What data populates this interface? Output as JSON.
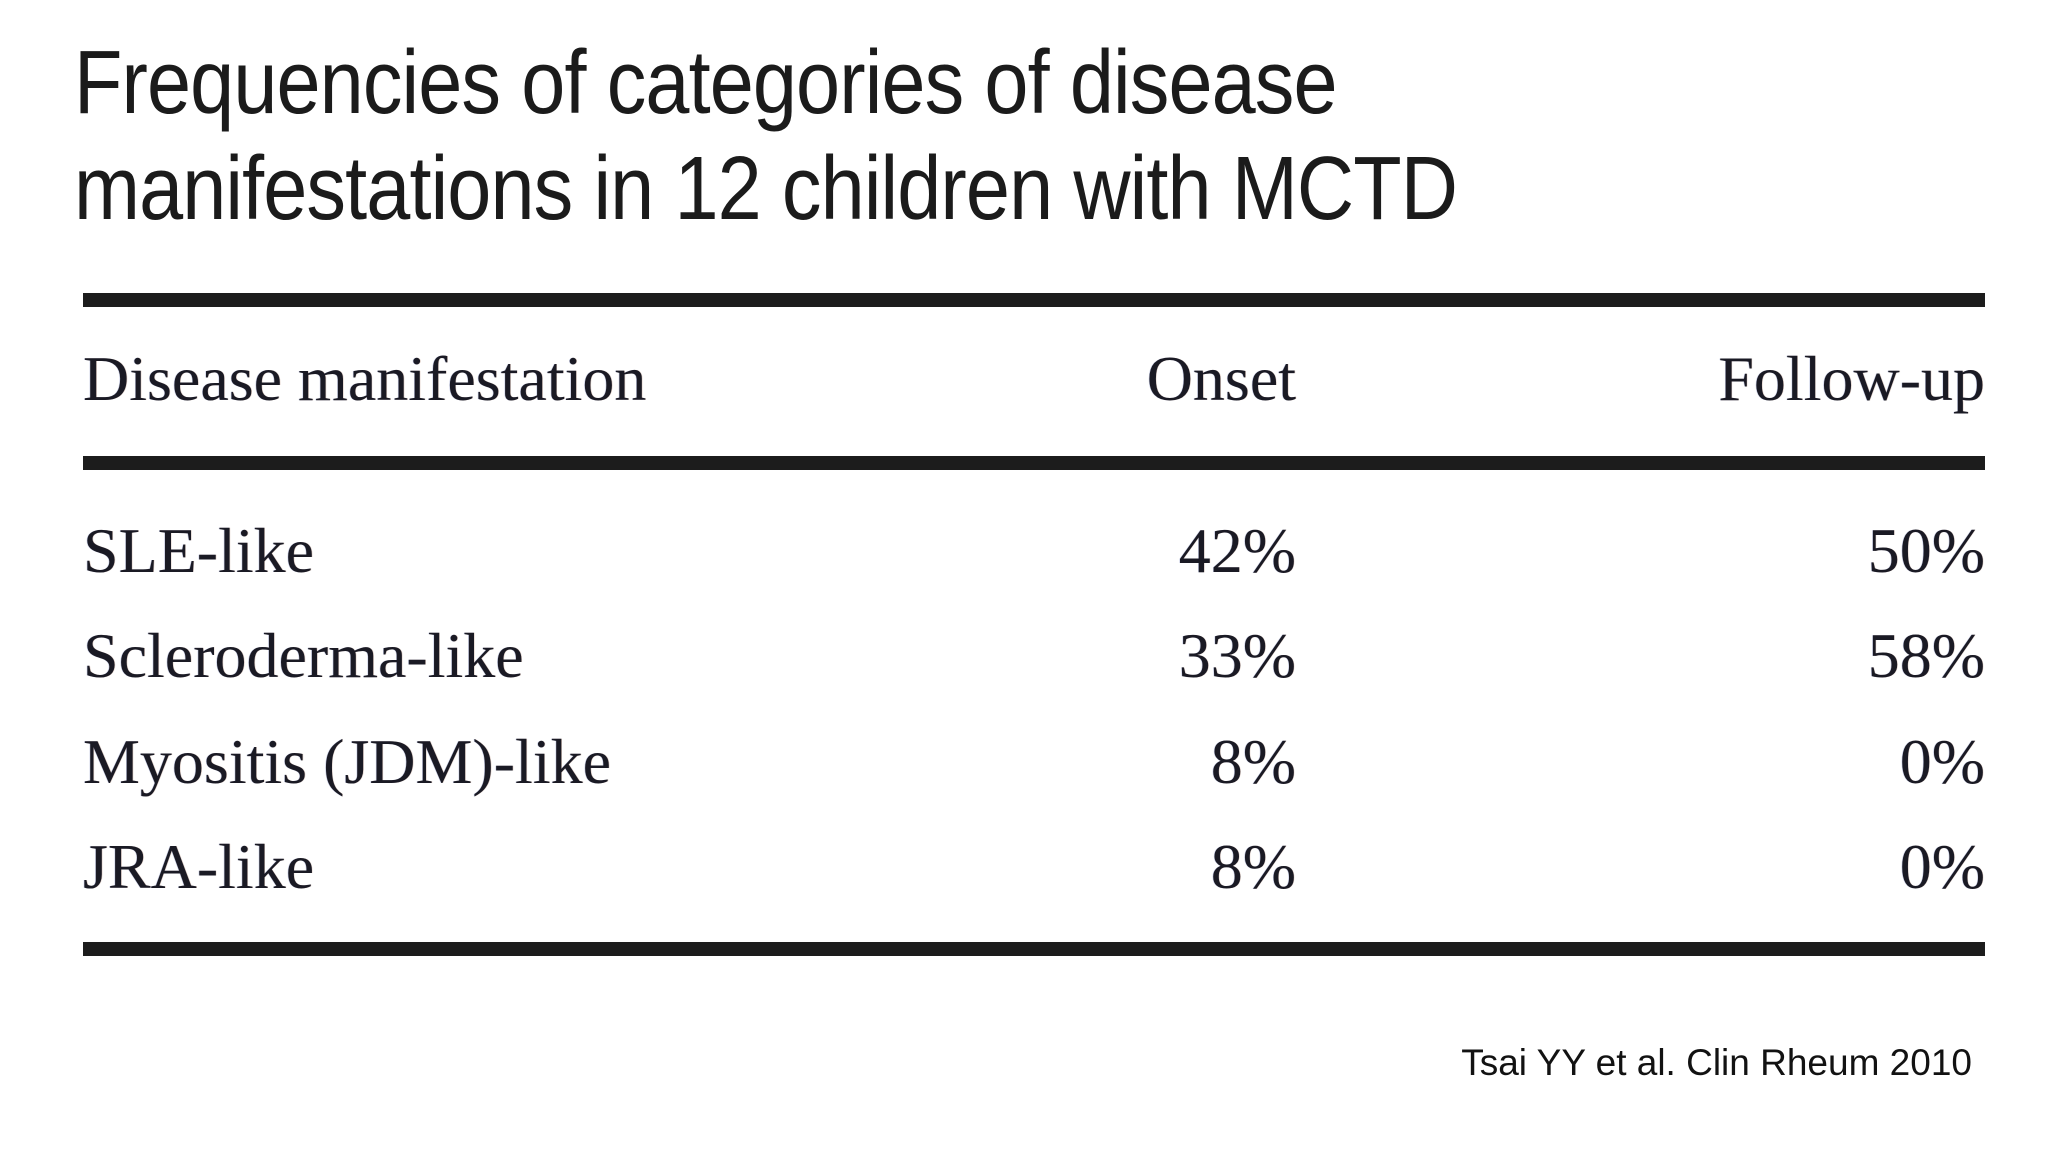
{
  "slide": {
    "title_line1": "Frequencies of categories of disease",
    "title_line2": "manifestations in 12 children with MCTD",
    "citation": "Tsai YY et al. Clin Rheum 2010"
  },
  "table": {
    "columns": [
      "Disease manifestation",
      "Onset",
      "Follow-up"
    ],
    "rows": [
      {
        "manifestation": "SLE-like",
        "onset": "42%",
        "followup": "50%"
      },
      {
        "manifestation": "Scleroderma-like",
        "onset": "33%",
        "followup": "58%"
      },
      {
        "manifestation": "Myositis (JDM)-like",
        "onset": "8%",
        "followup": "0%"
      },
      {
        "manifestation": "JRA-like",
        "onset": "8%",
        "followup": "0%"
      }
    ]
  },
  "chart_data": {
    "type": "table",
    "title": "Frequencies of categories of disease manifestations in 12 children with MCTD",
    "columns": [
      "Disease manifestation",
      "Onset",
      "Follow-up"
    ],
    "rows": [
      [
        "SLE-like",
        "42%",
        "50%"
      ],
      [
        "Scleroderma-like",
        "33%",
        "58%"
      ],
      [
        "Myositis (JDM)-like",
        "8%",
        "0%"
      ],
      [
        "JRA-like",
        "8%",
        "0%"
      ]
    ],
    "source": "Tsai YY et al. Clin Rheum 2010",
    "n_children": 12
  },
  "colors": {
    "title_text": "#1b1b1b",
    "table_text": "#1a1a24",
    "rule": "#1c1c1c",
    "background": "#ffffff"
  }
}
